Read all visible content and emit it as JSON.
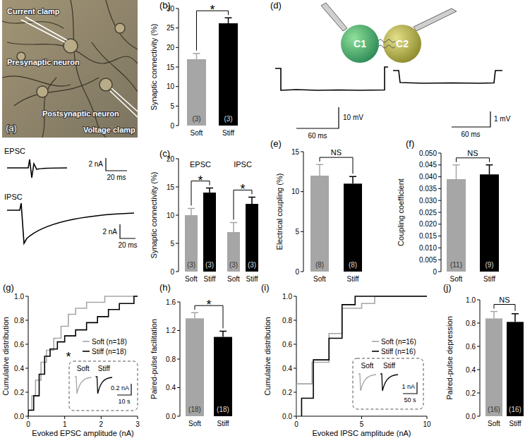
{
  "panel_a": {
    "label": "(a)",
    "annotations": [
      "Current clamp",
      "Presynaptic neuron",
      "Postsynaptic neuron",
      "Voltage clamp"
    ],
    "traces": [
      {
        "name": "EPSC",
        "scale_y": "2 nA",
        "scale_x": "20 ms"
      },
      {
        "name": "IPSC",
        "scale_y": "2 nA",
        "scale_x": "20 ms"
      }
    ]
  },
  "panel_d": {
    "label": "(d)",
    "cells": [
      "C1",
      "C2"
    ],
    "traces": [
      {
        "scale_y": "10 mV",
        "scale_x": "60 ms"
      },
      {
        "scale_y": "1 mV",
        "scale_x": "60 ms"
      }
    ]
  },
  "chart_data": [
    {
      "title": "(b)",
      "type": "bar",
      "y_label": "Synaptic connectivity (%)",
      "categories": [
        "Soft",
        "Stiff"
      ],
      "values": [
        17,
        26.2
      ],
      "errors": [
        1.5,
        1.4
      ],
      "n_labels": [
        "(3)",
        "(3)"
      ],
      "colors": [
        "#a6a6a6",
        "#000000"
      ],
      "ylim": [
        0,
        30
      ],
      "yticks": [
        0,
        5,
        10,
        15,
        20,
        25,
        30
      ],
      "annotations": [
        "*"
      ]
    },
    {
      "title": "(c)",
      "type": "bar",
      "y_label": "Synaptic connectivity (%)",
      "categories": [
        "Soft",
        "Stiff"
      ],
      "colors": [
        "#a6a6a6",
        "#000000"
      ],
      "groups": [
        {
          "name": "EPSC",
          "values": [
            10,
            14
          ],
          "errors": [
            1.2,
            0.8
          ],
          "n_labels": [
            "(3)",
            "(3)"
          ],
          "annotation": "*"
        },
        {
          "name": "IPSC",
          "values": [
            7,
            12
          ],
          "errors": [
            1.7,
            1.2
          ],
          "n_labels": [
            "(3)",
            "(3)"
          ],
          "annotation": "*"
        }
      ],
      "ylim": [
        0,
        20
      ],
      "yticks": [
        0,
        5,
        10,
        15,
        20
      ]
    },
    {
      "title": "(e)",
      "type": "bar",
      "y_label": "Electrical coupling (%)",
      "categories": [
        "Soft",
        "Stiff"
      ],
      "values": [
        12,
        11
      ],
      "errors": [
        1.4,
        0.9
      ],
      "n_labels": [
        "(8)",
        "(8)"
      ],
      "colors": [
        "#a6a6a6",
        "#000000"
      ],
      "ylim": [
        0,
        15
      ],
      "yticks": [
        0,
        5,
        10,
        15
      ],
      "annotations": [
        "NS"
      ]
    },
    {
      "title": "(f)",
      "type": "bar",
      "y_label": "Coupling coefficient",
      "categories": [
        "Soft",
        "Stiff"
      ],
      "values": [
        0.039,
        0.041
      ],
      "errors": [
        0.006,
        0.004
      ],
      "n_labels": [
        "(11)",
        "(9)"
      ],
      "colors": [
        "#a6a6a6",
        "#000000"
      ],
      "ylim": [
        0,
        0.05
      ],
      "yticks": [
        0,
        0.005,
        {
          "value": 0.01,
          "label": "0.010"
        },
        0.015,
        {
          "value": 0.02,
          "label": "0.020"
        },
        0.025,
        {
          "value": 0.03,
          "label": "0.030"
        },
        0.035,
        {
          "value": 0.04,
          "label": "0.040"
        },
        0.045,
        {
          "value": 0.05,
          "label": "0.050"
        }
      ],
      "annotations": [
        "NS"
      ]
    },
    {
      "title": "(g)",
      "type": "line",
      "line_style": "step",
      "x_label": "Evoked EPSC amplitude (nA)",
      "y_label": "Cumulative distribution",
      "legend": "right",
      "series": [
        {
          "name": "Soft (n=18)",
          "color": "#a6a6a6",
          "x": [
            0,
            0.1,
            0.2,
            0.35,
            0.5,
            0.7,
            0.9,
            1.1,
            1.3,
            1.6,
            2.1
          ],
          "values": [
            0.05,
            0.17,
            0.3,
            0.45,
            0.55,
            0.65,
            0.75,
            0.85,
            0.9,
            0.95,
            1.0
          ]
        },
        {
          "name": "Stiff (n=18)",
          "color": "#000000",
          "x": [
            0,
            0.15,
            0.3,
            0.45,
            0.6,
            0.8,
            1.0,
            1.3,
            1.6,
            1.9,
            2.2,
            2.5,
            2.9
          ],
          "values": [
            0.05,
            0.17,
            0.35,
            0.5,
            0.56,
            0.62,
            0.67,
            0.72,
            0.78,
            0.83,
            0.89,
            0.94,
            1.0
          ]
        }
      ],
      "xlim": [
        0,
        3
      ],
      "xticks": [
        0,
        1,
        2,
        3
      ],
      "ylim": [
        0,
        1
      ],
      "yticks": [
        {
          "value": 0,
          "label": "0.0"
        },
        0.2,
        0.4,
        0.6,
        0.8,
        {
          "value": 1,
          "label": "1.0"
        }
      ],
      "annotations": [
        "*"
      ],
      "inset": {
        "labels": [
          "Soft",
          "Stiff"
        ],
        "scale_y": "0.2 nA",
        "scale_x": "10 s"
      }
    },
    {
      "title": "(h)",
      "type": "bar",
      "y_label": "Paired-pulse facilitation",
      "categories": [
        "Soft",
        "Stiff"
      ],
      "values": [
        1.37,
        1.11
      ],
      "errors": [
        0.08,
        0.08
      ],
      "n_labels": [
        "(18)",
        "(18)"
      ],
      "colors": [
        "#a6a6a6",
        "#000000"
      ],
      "ylim": [
        0,
        1.6
      ],
      "yticks": [
        {
          "value": 0,
          "label": "0.0"
        },
        0.4,
        0.8,
        1.2,
        1.6
      ],
      "annotations": [
        "*"
      ]
    },
    {
      "title": "(i)",
      "type": "line",
      "line_style": "step",
      "x_label": "Evoked IPSC amplitude (nA)",
      "y_label": "Cumulative distribution",
      "legend": "right",
      "series": [
        {
          "name": "Soft (n=16)",
          "color": "#a6a6a6",
          "x": [
            0,
            1.2,
            2.5,
            3.5,
            5,
            6
          ],
          "values": [
            0.27,
            0.45,
            0.69,
            0.9,
            0.94,
            1.0
          ]
        },
        {
          "name": "Stiff (n=16)",
          "color": "#000000",
          "x": [
            0.4,
            1.3,
            2.5,
            3.5,
            4.5
          ],
          "values": [
            0.15,
            0.47,
            0.65,
            0.93,
            1.0
          ]
        }
      ],
      "xlim": [
        0,
        10
      ],
      "xticks": [
        0,
        5,
        10
      ],
      "ylim": [
        0,
        1
      ],
      "yticks": [
        {
          "value": 0,
          "label": "0.0"
        },
        0.2,
        0.4,
        0.6,
        0.8,
        {
          "value": 1,
          "label": "1.0"
        }
      ],
      "inset": {
        "labels": [
          "Soft",
          "Stiff"
        ],
        "scale_y": "1 nA",
        "scale_x": "50 s"
      }
    },
    {
      "title": "(j)",
      "type": "bar",
      "y_label": "Paired-pulse depression",
      "categories": [
        "Soft",
        "Stiff"
      ],
      "values": [
        0.84,
        0.81
      ],
      "errors": [
        0.06,
        0.07
      ],
      "n_labels": [
        "(16)",
        "(16)"
      ],
      "colors": [
        "#a6a6a6",
        "#000000"
      ],
      "ylim": [
        0,
        1
      ],
      "yticks": [
        {
          "value": 0,
          "label": "0.0"
        },
        0.2,
        0.4,
        0.6,
        0.8,
        {
          "value": 1,
          "label": "1.0"
        }
      ],
      "annotations": [
        "NS"
      ]
    }
  ]
}
